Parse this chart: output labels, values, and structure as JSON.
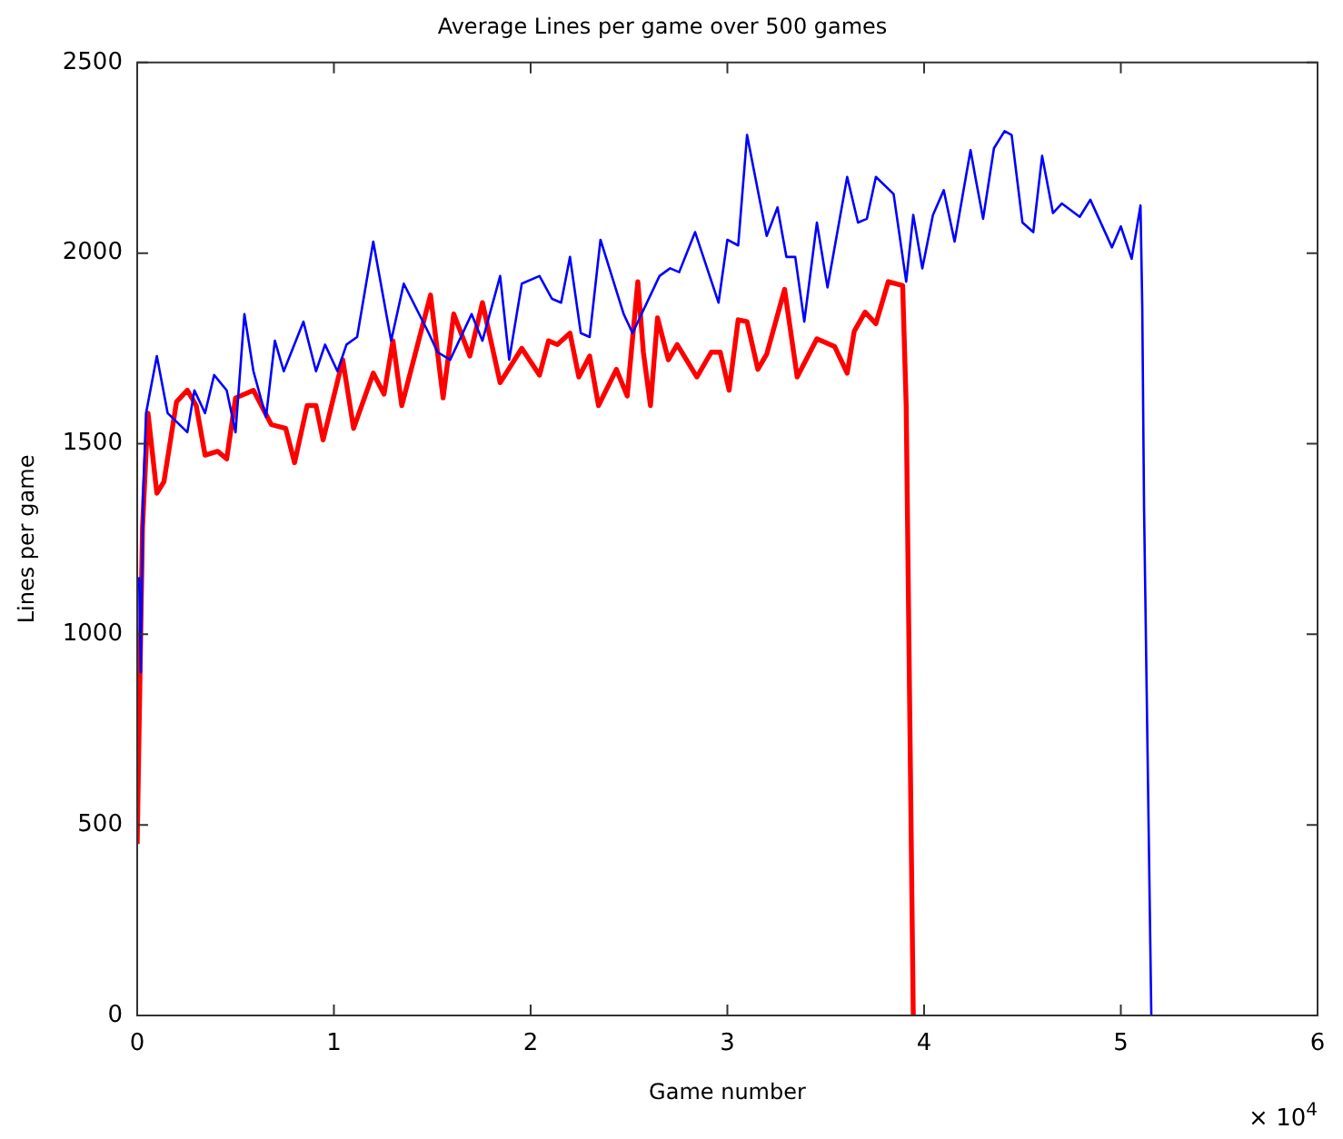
{
  "chart_data": {
    "type": "line",
    "title": "Average Lines per game over 500 games",
    "xlabel": "Game number",
    "ylabel": "Lines per game",
    "annotations": [
      "× 10$^{4}$"
    ],
    "xlim": [
      0,
      6
    ],
    "xticks": [
      0,
      1,
      2,
      3,
      4,
      5,
      6
    ],
    "ylim": [
      0,
      2500
    ],
    "yticks": [
      0,
      500,
      1000,
      1500,
      2000,
      2500
    ],
    "grid": false,
    "legend": false,
    "marker": "none",
    "line_style": "solid",
    "series": [
      {
        "color": "#0000ff",
        "x": [
          0.01,
          0.018,
          0.03,
          0.045,
          0.1,
          0.155,
          0.255,
          0.291,
          0.345,
          0.391,
          0.455,
          0.5,
          0.545,
          0.591,
          0.655,
          0.7,
          0.745,
          0.845,
          0.909,
          0.955,
          1.018,
          1.064,
          1.118,
          1.2,
          1.291,
          1.355,
          1.482,
          1.527,
          1.591,
          1.7,
          1.755,
          1.845,
          1.891,
          1.955,
          2.045,
          2.109,
          2.155,
          2.2,
          2.255,
          2.3,
          2.355,
          2.473,
          2.518,
          2.655,
          2.709,
          2.755,
          2.836,
          2.955,
          3.0,
          3.055,
          3.1,
          3.2,
          3.255,
          3.3,
          3.345,
          3.391,
          3.455,
          3.509,
          3.609,
          3.664,
          3.709,
          3.755,
          3.845,
          3.909,
          3.945,
          3.991,
          4.045,
          4.1,
          4.155,
          4.236,
          4.264,
          4.3,
          4.355,
          4.409,
          4.445,
          4.5,
          4.555,
          4.6,
          4.655,
          4.7,
          4.791,
          4.845,
          4.955,
          5.0,
          5.055,
          5.1,
          5.109,
          5.118,
          5.155
        ],
        "values": [
          1150,
          900,
          1360,
          1580,
          1730,
          1580,
          1530,
          1640,
          1580,
          1680,
          1640,
          1530,
          1840,
          1690,
          1570,
          1770,
          1690,
          1820,
          1690,
          1760,
          1690,
          1760,
          1780,
          2030,
          1770,
          1920,
          1790,
          1740,
          1720,
          1840,
          1770,
          1940,
          1720,
          1920,
          1940,
          1880,
          1870,
          1990,
          1790,
          1780,
          2035,
          1840,
          1790,
          1940,
          1960,
          1950,
          2055,
          1870,
          2035,
          2020,
          2310,
          2045,
          2120,
          1990,
          1990,
          1820,
          2080,
          1910,
          2200,
          2080,
          2090,
          2200,
          2155,
          1925,
          2100,
          1960,
          2100,
          2165,
          2030,
          2270,
          2190,
          2090,
          2275,
          2320,
          2310,
          2080,
          2055,
          2255,
          2105,
          2130,
          2095,
          2140,
          2015,
          2070,
          1985,
          2125,
          1860,
          1335,
          0
        ]
      },
      {
        "color": "#ff0000",
        "x": [
          0.0,
          0.027,
          0.055,
          0.1,
          0.136,
          0.2,
          0.255,
          0.3,
          0.345,
          0.409,
          0.455,
          0.5,
          0.591,
          0.682,
          0.755,
          0.8,
          0.864,
          0.909,
          0.945,
          1.045,
          1.1,
          1.2,
          1.255,
          1.3,
          1.345,
          1.491,
          1.555,
          1.609,
          1.691,
          1.755,
          1.845,
          1.955,
          2.045,
          2.091,
          2.136,
          2.2,
          2.245,
          2.3,
          2.345,
          2.436,
          2.491,
          2.545,
          2.573,
          2.609,
          2.645,
          2.7,
          2.745,
          2.845,
          2.918,
          2.964,
          3.009,
          3.055,
          3.1,
          3.155,
          3.2,
          3.291,
          3.355,
          3.455,
          3.545,
          3.609,
          3.645,
          3.7,
          3.755,
          3.818,
          3.891,
          3.909,
          3.945
        ],
        "values": [
          450,
          1280,
          1580,
          1370,
          1400,
          1610,
          1640,
          1600,
          1470,
          1480,
          1460,
          1620,
          1640,
          1550,
          1540,
          1450,
          1600,
          1600,
          1510,
          1720,
          1540,
          1685,
          1630,
          1770,
          1600,
          1890,
          1620,
          1840,
          1730,
          1870,
          1660,
          1750,
          1680,
          1770,
          1760,
          1790,
          1675,
          1730,
          1600,
          1695,
          1625,
          1925,
          1740,
          1600,
          1830,
          1720,
          1760,
          1675,
          1740,
          1740,
          1640,
          1825,
          1820,
          1695,
          1735,
          1905,
          1675,
          1775,
          1755,
          1685,
          1795,
          1845,
          1815,
          1925,
          1915,
          1600,
          0
        ]
      }
    ]
  }
}
